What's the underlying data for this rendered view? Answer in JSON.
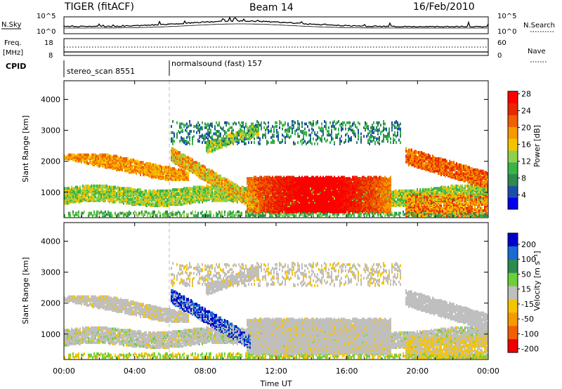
{
  "header": {
    "radar": "TIGER (fitACF)",
    "beam": "Beam 14",
    "date": "16/Feb/2010"
  },
  "nsky_panel": {
    "left_label": "N.Sky",
    "right_label": "N.Search",
    "left_ticks": [
      "10^5",
      "10^0"
    ],
    "right_ticks": [
      "10^5",
      "10^0"
    ]
  },
  "freq_panel": {
    "left_label_line1": "Freq.",
    "left_label_line2": "[MHz]",
    "right_label": "Nave",
    "left_ticks": [
      "18",
      "8"
    ],
    "right_ticks": [
      "60",
      "0"
    ]
  },
  "cpid": {
    "label": "CPID",
    "segments": [
      {
        "name": "stereo_scan 8551"
      },
      {
        "name": "normalsound (fast) 157"
      }
    ]
  },
  "x_axis": {
    "label": "Time UT",
    "ticks": [
      "00:00",
      "04:00",
      "08:00",
      "12:00",
      "16:00",
      "20:00",
      "00:00"
    ]
  },
  "chart_data": [
    {
      "type": "heatmap",
      "title": "",
      "ylabel": "Slant Range [km]",
      "xlabel": "",
      "ylim": [
        180,
        4600
      ],
      "xlim_hours": [
        0,
        24
      ],
      "yticks": [
        "1000",
        "2000",
        "3000",
        "4000"
      ],
      "colorbar": {
        "label": "Power [dB]",
        "ticks": [
          "4",
          "8",
          "12",
          "16",
          "20",
          "24",
          "28"
        ],
        "colors": [
          "#0000ee",
          "#1e4fa8",
          "#2e8a4e",
          "#39b54a",
          "#8fd14f",
          "#f5c400",
          "#f59a00",
          "#f06000",
          "#e82800",
          "#ff0000"
        ]
      }
    },
    {
      "type": "heatmap",
      "title": "",
      "ylabel": "Slant Range [km]",
      "xlabel": "Time UT",
      "ylim": [
        180,
        4600
      ],
      "xlim_hours": [
        0,
        24
      ],
      "yticks": [
        "1000",
        "2000",
        "3000",
        "4000"
      ],
      "colorbar": {
        "label": "Velocity [m s⁻¹]",
        "ticks": [
          "200",
          "100",
          "50",
          "15",
          "-15",
          "-50",
          "-100",
          "-200"
        ],
        "colors": [
          "#0000cc",
          "#1a6ad0",
          "#2e8a4e",
          "#6ccf3c",
          "#bfbfbf",
          "#f5c400",
          "#f59a00",
          "#f06000",
          "#ee0000"
        ]
      }
    }
  ]
}
